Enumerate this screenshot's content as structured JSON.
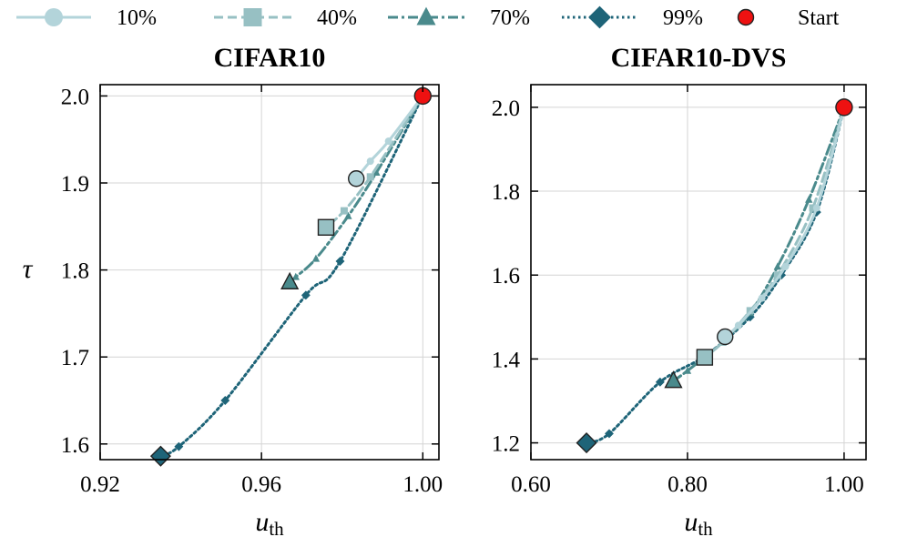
{
  "legend": [
    {
      "label": "10%",
      "marker": "circle",
      "color": "#b3d4da",
      "dash": "solid"
    },
    {
      "label": "40%",
      "marker": "square",
      "color": "#97c0c3",
      "dash": "dashed"
    },
    {
      "label": "70%",
      "marker": "triangle",
      "color": "#4a8a8c",
      "dash": "dashdot"
    },
    {
      "label": "99%",
      "marker": "diamond",
      "color": "#1e6478",
      "dash": "dotted"
    },
    {
      "label": "Start",
      "marker": "circle",
      "color": "#ee1111",
      "dash": "none"
    }
  ],
  "chart_data": [
    {
      "type": "line",
      "title": "CIFAR10",
      "xlabel": "u",
      "xlabel_sub": "th",
      "ylabel": "τ",
      "xlim": [
        0.92,
        1.004
      ],
      "ylim": [
        1.582,
        2.013
      ],
      "xticks": [
        0.92,
        0.96,
        1.0
      ],
      "xtick_labels": [
        "0.92",
        "0.96",
        "1.00"
      ],
      "yticks": [
        1.6,
        1.7,
        1.8,
        1.9,
        2.0
      ],
      "ytick_labels": [
        "1.6",
        "1.7",
        "1.8",
        "1.9",
        "2.0"
      ],
      "start": {
        "x": 1.0,
        "y": 2.0
      },
      "series": [
        {
          "name": "10%",
          "x": [
            1.0,
            0.9915,
            0.987,
            0.9835
          ],
          "y": [
            2.0,
            1.948,
            1.925,
            1.905
          ]
        },
        {
          "name": "40%",
          "x": [
            1.0,
            0.987,
            0.9805,
            0.976
          ],
          "y": [
            2.0,
            1.907,
            1.868,
            1.849
          ]
        },
        {
          "name": "70%",
          "x": [
            1.0,
            0.9885,
            0.9815,
            0.9735,
            0.9685,
            0.967
          ],
          "y": [
            2.0,
            1.912,
            1.862,
            1.813,
            1.792,
            1.786
          ]
        },
        {
          "name": "99%",
          "x": [
            1.0,
            0.9795,
            0.971,
            0.951,
            0.9395,
            0.935
          ],
          "y": [
            2.0,
            1.81,
            1.771,
            1.65,
            1.597,
            1.586
          ]
        }
      ]
    },
    {
      "type": "line",
      "title": "CIFAR10-DVS",
      "xlabel": "u",
      "xlabel_sub": "th",
      "ylabel": "",
      "xlim": [
        0.6,
        1.028
      ],
      "ylim": [
        1.16,
        2.054
      ],
      "xticks": [
        0.6,
        0.8,
        1.0
      ],
      "xtick_labels": [
        "0.60",
        "0.80",
        "1.00"
      ],
      "yticks": [
        1.2,
        1.4,
        1.6,
        1.8,
        2.0
      ],
      "ytick_labels": [
        "1.2",
        "1.4",
        "1.6",
        "1.8",
        "2.0"
      ],
      "start": {
        "x": 1.0,
        "y": 2.0
      },
      "series": [
        {
          "name": "10%",
          "x": [
            1.0,
            0.965,
            0.925,
            0.895,
            0.865,
            0.848
          ],
          "y": [
            2.0,
            1.76,
            1.62,
            1.545,
            1.48,
            1.453
          ]
        },
        {
          "name": "40%",
          "x": [
            1.0,
            0.96,
            0.915,
            0.88,
            0.845,
            0.822
          ],
          "y": [
            2.0,
            1.76,
            1.6,
            1.515,
            1.44,
            1.404
          ]
        },
        {
          "name": "70%",
          "x": [
            1.0,
            0.955,
            0.915,
            0.88,
            0.845,
            0.8,
            0.782
          ],
          "y": [
            2.0,
            1.78,
            1.62,
            1.51,
            1.44,
            1.372,
            1.348
          ]
        },
        {
          "name": "99%",
          "x": [
            1.0,
            0.965,
            0.92,
            0.88,
            0.823,
            0.765,
            0.7,
            0.671
          ],
          "y": [
            2.0,
            1.75,
            1.6,
            1.5,
            1.408,
            1.345,
            1.222,
            1.2
          ]
        }
      ]
    }
  ]
}
